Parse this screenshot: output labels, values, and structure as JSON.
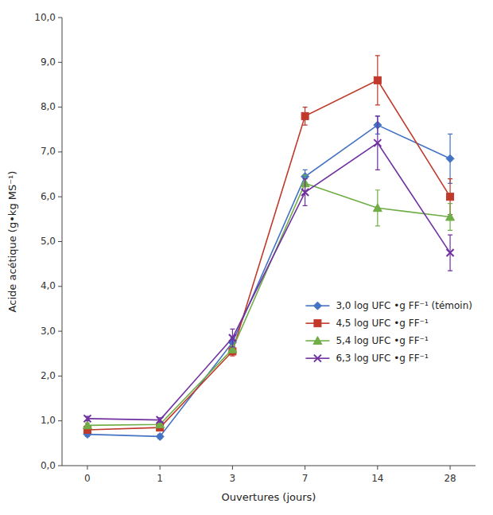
{
  "chart_data": {
    "type": "line",
    "xlabel": "Ouvertures (jours)",
    "ylabel": "Acide acétique (g•kg MS⁻¹)",
    "categories": [
      "0",
      "1",
      "3",
      "7",
      "14",
      "28"
    ],
    "series": [
      {
        "name": "3,0 log UFC •g FF⁻¹ (témoin)",
        "color": "#4472C4",
        "marker": "diamond",
        "values": [
          0.7,
          0.65,
          2.75,
          6.45,
          7.6,
          6.85
        ],
        "errors": [
          0.05,
          0.05,
          0.1,
          0.15,
          0.2,
          0.55
        ]
      },
      {
        "name": "4,5 log UFC •g FF⁻¹",
        "color": "#C0392B",
        "marker": "square",
        "values": [
          0.8,
          0.85,
          2.55,
          7.8,
          8.6,
          6.0
        ],
        "errors": [
          0.05,
          0.05,
          0.1,
          0.2,
          0.55,
          0.4
        ]
      },
      {
        "name": "5,4 log UFC •g FF⁻¹",
        "color": "#70AD47",
        "marker": "triangle",
        "values": [
          0.9,
          0.92,
          2.6,
          6.3,
          5.75,
          5.55
        ],
        "errors": [
          0.05,
          0.05,
          0.08,
          0.18,
          0.4,
          0.3
        ]
      },
      {
        "name": "6,3 log UFC •g FF⁻¹",
        "color": "#7030A0",
        "marker": "x",
        "values": [
          1.05,
          1.02,
          2.85,
          6.1,
          7.2,
          4.75
        ],
        "errors": [
          0.05,
          0.05,
          0.2,
          0.3,
          0.6,
          0.4
        ]
      }
    ],
    "ylim": [
      0.0,
      10.0
    ],
    "yticks": [
      {
        "value": 0.0,
        "label": "0,0"
      },
      {
        "value": 1.0,
        "label": "1,0"
      },
      {
        "value": 2.0,
        "label": "2,0"
      },
      {
        "value": 3.0,
        "label": "3,0"
      },
      {
        "value": 4.0,
        "label": "4,0"
      },
      {
        "value": 5.0,
        "label": "5,0"
      },
      {
        "value": 6.0,
        "label": "6,0"
      },
      {
        "value": 7.0,
        "label": "7,0"
      },
      {
        "value": 8.0,
        "label": "8,0"
      },
      {
        "value": 9.0,
        "label": "9,0"
      },
      {
        "value": 10.0,
        "label": "10,0"
      }
    ],
    "grid": false,
    "legend": "lower right"
  }
}
